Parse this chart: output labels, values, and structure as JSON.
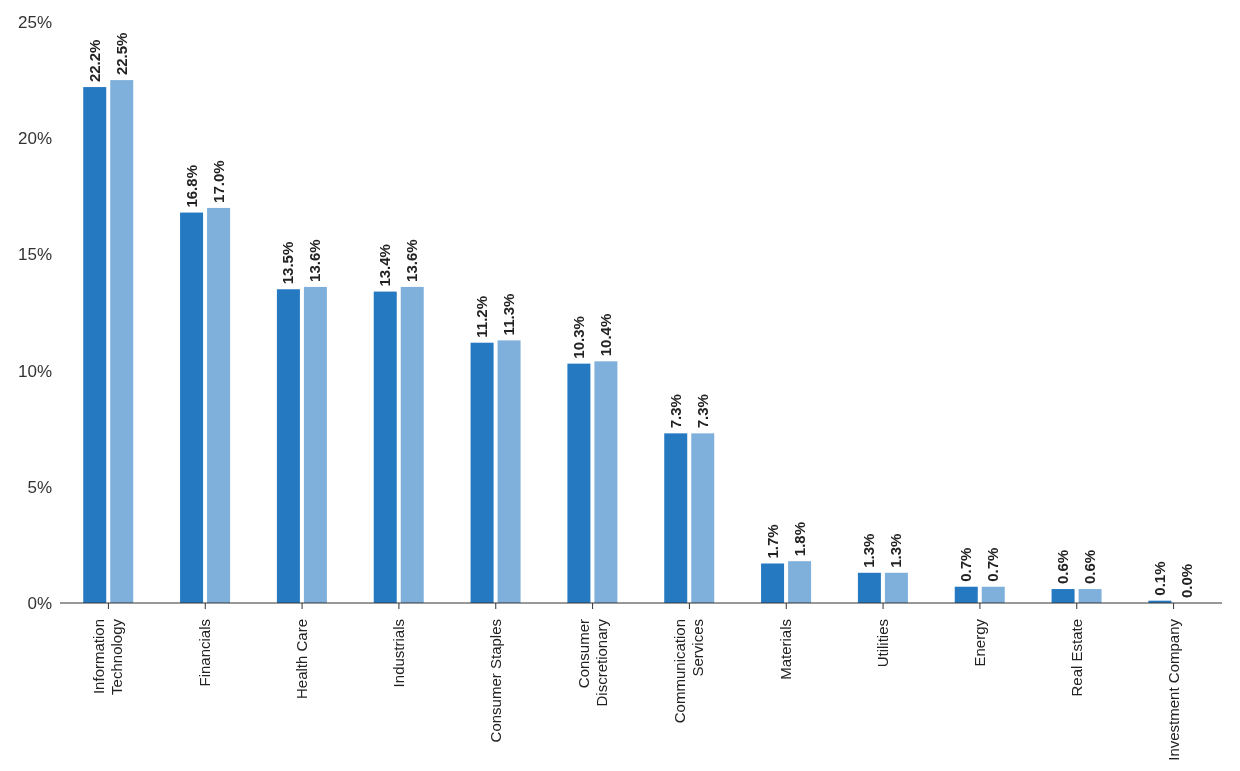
{
  "chart_data": {
    "type": "bar",
    "categories": [
      "Information Technology",
      "Financials",
      "Health Care",
      "Industrials",
      "Consumer Staples",
      "Consumer Discretionary",
      "Communication Services",
      "Materials",
      "Utilities",
      "Energy",
      "Real Estate",
      "Investment Company"
    ],
    "series": [
      {
        "color": "#2479c1",
        "values": [
          22.2,
          16.8,
          13.5,
          13.4,
          11.2,
          10.3,
          7.3,
          1.7,
          1.3,
          0.7,
          0.6,
          0.1
        ],
        "value_labels": [
          "22.2%",
          "16.8%",
          "13.5%",
          "13.4%",
          "11.2%",
          "10.3%",
          "7.3%",
          "1.7%",
          "1.3%",
          "0.7%",
          "0.6%",
          "0.1%"
        ]
      },
      {
        "color": "#7fb0dc",
        "values": [
          22.5,
          17.0,
          13.6,
          13.6,
          11.3,
          10.4,
          7.3,
          1.8,
          1.3,
          0.7,
          0.6,
          0.0
        ],
        "value_labels": [
          "22.5%",
          "17.0%",
          "13.6%",
          "13.6%",
          "11.3%",
          "10.4%",
          "7.3%",
          "1.8%",
          "1.3%",
          "0.7%",
          "0.6%",
          "0.0%"
        ]
      }
    ],
    "ylim": [
      0,
      25
    ],
    "yticks": [
      {
        "value": 0,
        "label": "0%"
      },
      {
        "value": 5,
        "label": "5%"
      },
      {
        "value": 10,
        "label": "10%"
      },
      {
        "value": 15,
        "label": "15%"
      },
      {
        "value": 20,
        "label": "20%"
      },
      {
        "value": 25,
        "label": "25%"
      }
    ],
    "grid": false
  }
}
